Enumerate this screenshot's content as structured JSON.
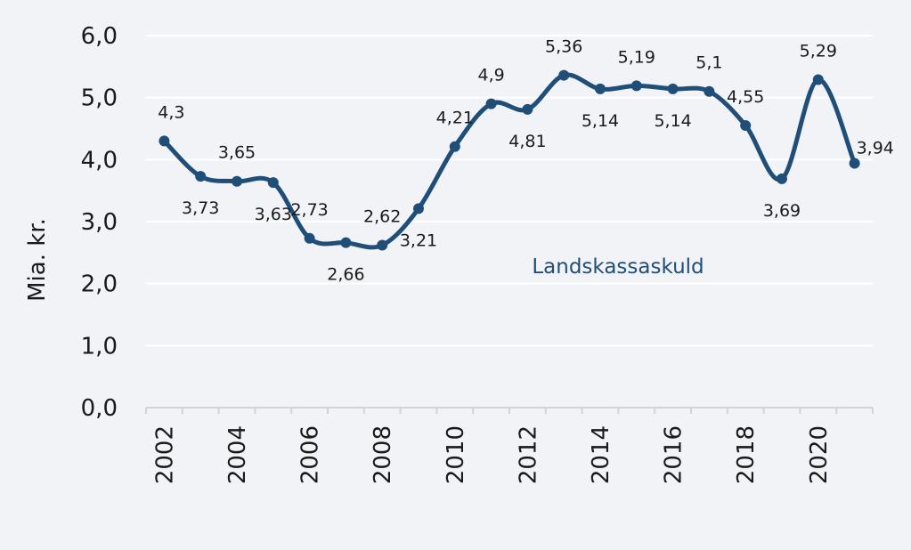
{
  "chart_data": {
    "type": "line",
    "ylabel": "Mia. kr.",
    "xlabel": "",
    "ylim": [
      0,
      6
    ],
    "yticks": [
      "0,0",
      "1,0",
      "2,0",
      "3,0",
      "4,0",
      "5,0",
      "6,0"
    ],
    "xtick_labels": [
      "2002",
      "2004",
      "2006",
      "2008",
      "2010",
      "2012",
      "2014",
      "2016",
      "2018",
      "2020"
    ],
    "grid": true,
    "series": [
      {
        "name": "Landskassaskuld",
        "color": "#1f4e79",
        "x": [
          2002,
          2003,
          2004,
          2005,
          2006,
          2007,
          2008,
          2009,
          2010,
          2011,
          2012,
          2013,
          2014,
          2015,
          2016,
          2017,
          2018,
          2019,
          2020,
          2021
        ],
        "values": [
          4.3,
          3.73,
          3.65,
          3.63,
          2.73,
          2.66,
          2.62,
          3.21,
          4.21,
          4.9,
          4.81,
          5.36,
          5.14,
          5.19,
          5.14,
          5.1,
          4.55,
          3.69,
          5.29,
          3.94
        ],
        "labels": [
          "4,3",
          "3,73",
          "3,65",
          "3,63",
          "2,73",
          "2,66",
          "2,62",
          "3,21",
          "4,21",
          "4,9",
          "4,81",
          "5,36",
          "5,14",
          "5,19",
          "5,14",
          "5,1",
          "4,55",
          "3,69",
          "5,29",
          "3,94"
        ]
      }
    ]
  }
}
